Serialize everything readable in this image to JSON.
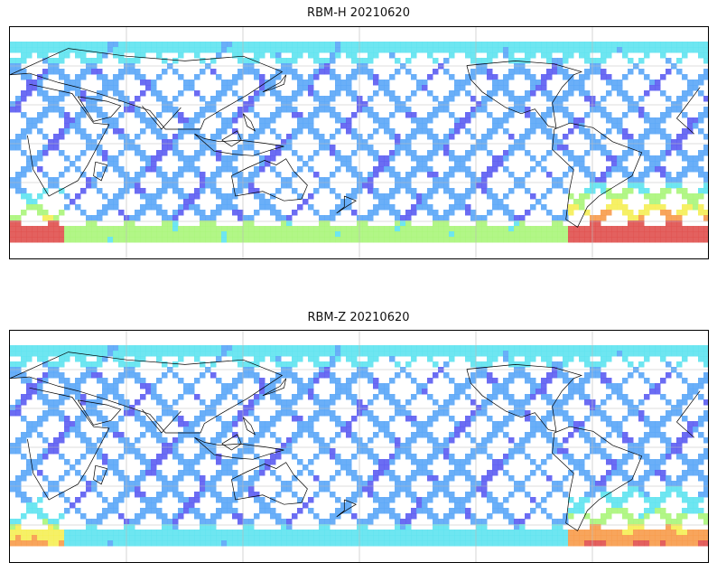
{
  "panels": [
    {
      "title": "RBM-H 20210620",
      "field": "rbm_h",
      "hotspots": [
        "south-atlantic",
        "indian-south-west",
        "pacific-south-band"
      ]
    },
    {
      "title": "RBM-Z 20210620",
      "field": "rbm_z",
      "hotspots": [
        "south-atlantic-mild",
        "indian-south-west-mild"
      ]
    }
  ],
  "colors": {
    "low": "#5b5cf2",
    "mid_low": "#5aa6f7",
    "mid": "#5ee3f0",
    "mid_high": "#aaf57a",
    "high": "#f5ee55",
    "very_high": "#f79b4a",
    "max": "#e0504e",
    "coast": "#000000",
    "grid": "#bbbbbb"
  },
  "map": {
    "projection": "plate-carree",
    "central_longitude": 180,
    "coastlines": true,
    "gridlines": true,
    "swath_pattern": "ascending/descending orbit crisscross"
  }
}
